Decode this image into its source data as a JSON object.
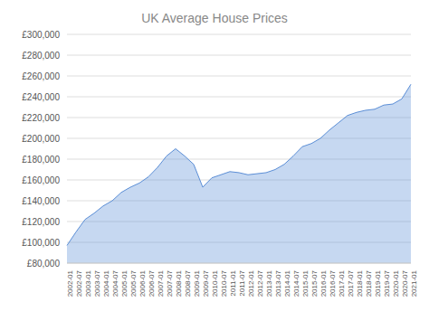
{
  "chart_data": {
    "type": "area",
    "title": "UK Average House Prices",
    "categories": [
      "2002-01",
      "2002-07",
      "2003-01",
      "2003-07",
      "2004-01",
      "2004-07",
      "2005-01",
      "2005-07",
      "2006-01",
      "2006-07",
      "2007-01",
      "2007-07",
      "2008-01",
      "2008-07",
      "2009-01",
      "2009-07",
      "2010-01",
      "2010-07",
      "2011-01",
      "2011-07",
      "2012-01",
      "2012-07",
      "2013-01",
      "2013-07",
      "2014-01",
      "2014-07",
      "2015-01",
      "2015-07",
      "2016-01",
      "2016-07",
      "2017-01",
      "2017-07",
      "2018-01",
      "2018-07",
      "2019-01",
      "2019-07",
      "2020-01",
      "2020-07",
      "2021-01"
    ],
    "values": [
      97000,
      110000,
      122000,
      128000,
      135000,
      140000,
      148000,
      153000,
      157000,
      163000,
      172000,
      183000,
      190000,
      183000,
      175000,
      153000,
      162000,
      165000,
      168000,
      167000,
      165000,
      166000,
      167000,
      170000,
      175000,
      183000,
      192000,
      195000,
      200000,
      208000,
      215000,
      222000,
      225000,
      227000,
      228000,
      232000,
      233000,
      238000,
      252000
    ],
    "color": "#5B8ED6",
    "ylim": [
      80000,
      300000
    ],
    "yticks": [
      {
        "value": 80000,
        "label": "£80,000"
      },
      {
        "value": 100000,
        "label": "£100,000"
      },
      {
        "value": 120000,
        "label": "£120,000"
      },
      {
        "value": 140000,
        "label": "£140,000"
      },
      {
        "value": 160000,
        "label": "£160,000"
      },
      {
        "value": 180000,
        "label": "£180,000"
      },
      {
        "value": 200000,
        "label": "£200,000"
      },
      {
        "value": 220000,
        "label": "£220,000"
      },
      {
        "value": 240000,
        "label": "£240,000"
      },
      {
        "value": 260000,
        "label": "£260,000"
      },
      {
        "value": 280000,
        "label": "£280,000"
      },
      {
        "value": 300000,
        "label": "£300,000"
      }
    ],
    "grid": true
  }
}
